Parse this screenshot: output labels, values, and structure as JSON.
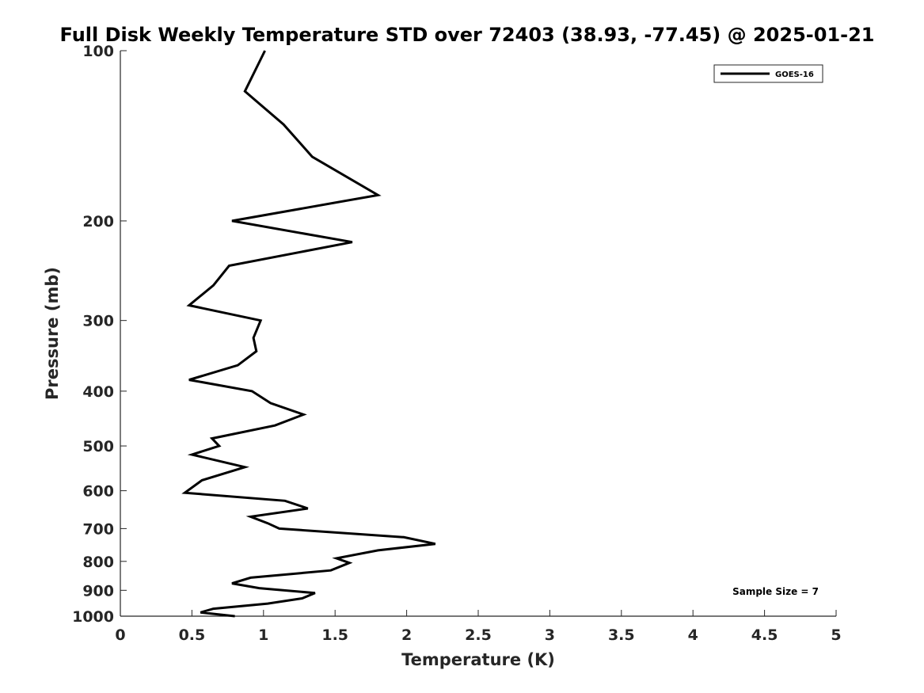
{
  "chart_data": {
    "type": "line",
    "title": "Full Disk Weekly Temperature STD over 72403 (38.93, -77.45) @ 2025-01-21",
    "xlabel": "Temperature (K)",
    "ylabel": "Pressure (mb)",
    "xlim": [
      0,
      5
    ],
    "ylim": [
      100,
      1000
    ],
    "y_scale": "log",
    "y_reversed": true,
    "x_ticks": [
      "0",
      "0.5",
      "1",
      "1.5",
      "2",
      "2.5",
      "3",
      "3.5",
      "4",
      "4.5",
      "5"
    ],
    "y_ticks": [
      "100",
      "200",
      "300",
      "400",
      "500",
      "600",
      "700",
      "800",
      "900",
      "1000"
    ],
    "grid": false,
    "legend_position": "top-right",
    "annotation": "Sample Size = 7",
    "series": [
      {
        "name": "GOES-16",
        "color": "#000000",
        "points": [
          [
            1.01,
            100
          ],
          [
            0.87,
            118
          ],
          [
            1.14,
            135
          ],
          [
            1.34,
            154
          ],
          [
            1.8,
            180
          ],
          [
            0.78,
            200
          ],
          [
            1.62,
            218
          ],
          [
            0.76,
            240
          ],
          [
            0.65,
            260
          ],
          [
            0.48,
            282
          ],
          [
            0.98,
            300
          ],
          [
            0.93,
            322
          ],
          [
            0.95,
            340
          ],
          [
            0.82,
            360
          ],
          [
            0.48,
            382
          ],
          [
            0.92,
            400
          ],
          [
            1.05,
            420
          ],
          [
            1.28,
            440
          ],
          [
            1.08,
            460
          ],
          [
            0.64,
            485
          ],
          [
            0.69,
            500
          ],
          [
            0.5,
            518
          ],
          [
            0.87,
            545
          ],
          [
            0.57,
            575
          ],
          [
            0.45,
            605
          ],
          [
            1.15,
            625
          ],
          [
            1.31,
            645
          ],
          [
            0.91,
            667
          ],
          [
            1.03,
            685
          ],
          [
            1.11,
            700
          ],
          [
            1.98,
            725
          ],
          [
            2.2,
            745
          ],
          [
            1.8,
            765
          ],
          [
            1.51,
            790
          ],
          [
            1.6,
            805
          ],
          [
            1.47,
            830
          ],
          [
            0.91,
            855
          ],
          [
            0.78,
            875
          ],
          [
            0.97,
            892
          ],
          [
            1.36,
            910
          ],
          [
            1.27,
            930
          ],
          [
            1.03,
            950
          ],
          [
            0.65,
            970
          ],
          [
            0.56,
            985
          ],
          [
            0.8,
            1000
          ]
        ]
      }
    ]
  }
}
